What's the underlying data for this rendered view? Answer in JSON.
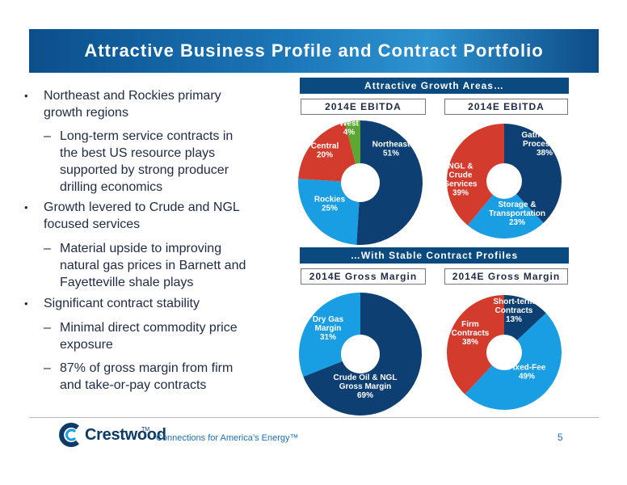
{
  "title": "Attractive Business Profile and Contract Portfolio",
  "bullets": [
    {
      "level": 1,
      "lines": [
        "Northeast and Rockies primary",
        "growth regions"
      ]
    },
    {
      "level": 2,
      "lines": [
        "Long-term service contracts in",
        "the best US resource plays",
        "supported by strong producer",
        "drilling economics"
      ]
    },
    {
      "level": 1,
      "lines": [
        "Growth levered to Crude and NGL",
        "focused services"
      ]
    },
    {
      "level": 2,
      "lines": [
        "Material upside to improving",
        "natural gas prices in Barnett and",
        "Fayetteville shale plays"
      ]
    },
    {
      "level": 1,
      "lines": [
        "Significant contract stability"
      ]
    },
    {
      "level": 2,
      "lines": [
        "Minimal direct commodity price",
        "exposure"
      ]
    },
    {
      "level": 2,
      "lines": [
        "87% of gross margin from firm",
        "and take-or-pay contracts"
      ]
    }
  ],
  "bullet_marks": {
    "level1": "•",
    "level2": "–"
  },
  "growth_header": "Attractive Growth Areas…",
  "contract_header": "…With Stable Contract Profiles",
  "chart_data": [
    {
      "type": "pie",
      "title": "2014E EBITDA",
      "series": [
        {
          "values": [
            51,
            25,
            20,
            4
          ]
        }
      ],
      "categories": [
        "Northeast",
        "Rockies",
        "Central",
        "West"
      ],
      "labels": [
        [
          "Northeast",
          "51%"
        ],
        [
          "Rockies",
          "25%"
        ],
        [
          "Central",
          "20%"
        ],
        [
          "West",
          "4%"
        ]
      ],
      "colors": [
        "#0d3f72",
        "#1a9ee3",
        "#d33b2d",
        "#5aa832"
      ]
    },
    {
      "type": "pie",
      "title": "2014E EBITDA",
      "series": [
        {
          "values": [
            38,
            23,
            39
          ]
        }
      ],
      "categories": [
        "Gathering & Processing",
        "Storage & Transportation",
        "NGL & Crude Services"
      ],
      "labels": [
        [
          "Gathering &",
          "Processing",
          "38%"
        ],
        [
          "Storage &",
          "Transportation",
          "23%"
        ],
        [
          "NGL &",
          "Crude",
          "Services",
          "39%"
        ]
      ],
      "colors": [
        "#0d3f72",
        "#1a9ee3",
        "#d33b2d"
      ]
    },
    {
      "type": "pie",
      "title": "2014E Gross Margin",
      "series": [
        {
          "values": [
            69,
            31
          ]
        }
      ],
      "categories": [
        "Crude Oil & NGL Gross Margin",
        "Dry Gas Margin"
      ],
      "labels": [
        [
          "Crude Oil & NGL",
          "Gross Margin",
          "69%"
        ],
        [
          "Dry Gas",
          "Margin",
          "31%"
        ]
      ],
      "colors": [
        "#0d3f72",
        "#1a9ee3"
      ]
    },
    {
      "type": "pie",
      "title": "2014E Gross Margin",
      "series": [
        {
          "values": [
            13,
            49,
            38
          ]
        }
      ],
      "categories": [
        "Short-term Contracts",
        "Fixed-Fee",
        "Firm Contracts"
      ],
      "labels": [
        [
          "Short-term",
          "Contracts",
          "13%"
        ],
        [
          "Fixed-Fee",
          "49%"
        ],
        [
          "Firm",
          "Contracts",
          "38%"
        ]
      ],
      "colors": [
        "#0d3f72",
        "#1a9ee3",
        "#d33b2d"
      ]
    }
  ],
  "footer": {
    "company": "Crestwood",
    "trademark": "TM",
    "tagline": "Connections for America’s Energy™",
    "page_number": "5"
  },
  "colors": {
    "navy": "#0d3f72",
    "sky": "#1a9ee3",
    "red": "#d33b2d",
    "green": "#5aa832",
    "header": "#0b4a7e"
  }
}
